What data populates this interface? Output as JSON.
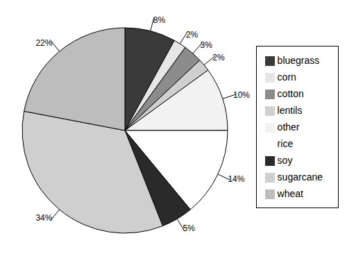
{
  "chart_data": {
    "type": "pie",
    "categories": [
      "bluegrass",
      "corn",
      "cotton",
      "lentils",
      "other",
      "rice",
      "soy",
      "sugarcane",
      "wheat"
    ],
    "values": [
      8,
      2,
      3,
      2,
      10,
      14,
      5,
      34,
      22
    ],
    "value_labels": [
      "8%",
      "2%",
      "3%",
      "2%",
      "10%",
      "14%",
      "5%",
      "34%",
      "22%"
    ],
    "colors": [
      "#3a3a3a",
      "#e6e6e6",
      "#8c8c8c",
      "#d0d0d0",
      "#f2f2f2",
      "#ffffff",
      "#2a2a2a",
      "#cfcfcf",
      "#bdbdbd"
    ],
    "legend": "right",
    "data_labels": true
  }
}
